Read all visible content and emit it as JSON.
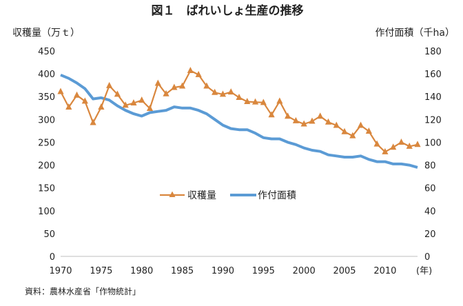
{
  "chart_data": {
    "type": "line",
    "title": "図１　ばれいしょ生産の推移",
    "y_left_label": "収穫量（万ｔ）",
    "y_right_label": "作付面積（千ha）",
    "x_unit_label": "(年)",
    "source_note": "資料：農林水産省「作物統計」",
    "grid": false,
    "legend_position": "center",
    "x_range": [
      1970,
      2014
    ],
    "x_ticks": [
      "1970",
      "1975",
      "1980",
      "1985",
      "1990",
      "1995",
      "2000",
      "2005",
      "2010"
    ],
    "y_left": {
      "min": 0,
      "max": 450,
      "ticks": [
        "0",
        "50",
        "100",
        "150",
        "200",
        "250",
        "300",
        "350",
        "400",
        "450"
      ]
    },
    "y_right": {
      "min": 0,
      "max": 180,
      "ticks": [
        "0",
        "20",
        "40",
        "60",
        "80",
        "100",
        "120",
        "140",
        "160",
        "180"
      ]
    },
    "series": [
      {
        "name": "収穫量",
        "axis": "left",
        "marker": "triangle",
        "color": "#d9873e",
        "x": [
          1970,
          1971,
          1972,
          1973,
          1974,
          1975,
          1976,
          1977,
          1978,
          1979,
          1980,
          1981,
          1982,
          1983,
          1984,
          1985,
          1986,
          1987,
          1988,
          1989,
          1990,
          1991,
          1992,
          1993,
          1994,
          1995,
          1996,
          1997,
          1998,
          1999,
          2000,
          2001,
          2002,
          2003,
          2004,
          2005,
          2006,
          2007,
          2008,
          2009,
          2010,
          2011,
          2012,
          2013,
          2014
        ],
        "values": [
          361,
          327,
          353,
          340,
          293,
          327,
          374,
          355,
          331,
          336,
          342,
          324,
          379,
          356,
          370,
          373,
          407,
          398,
          373,
          359,
          355,
          360,
          348,
          339,
          338,
          337,
          310,
          340,
          307,
          297,
          290,
          296,
          307,
          294,
          287,
          273,
          264,
          287,
          274,
          246,
          229,
          239,
          250,
          241,
          245
        ]
      },
      {
        "name": "作付面積",
        "axis": "right",
        "marker": "none",
        "color": "#5b9bd5",
        "x": [
          1970,
          1971,
          1972,
          1973,
          1974,
          1975,
          1976,
          1977,
          1978,
          1979,
          1980,
          1981,
          1982,
          1983,
          1984,
          1985,
          1986,
          1987,
          1988,
          1989,
          1990,
          1991,
          1992,
          1993,
          1994,
          1995,
          1996,
          1997,
          1998,
          1999,
          2000,
          2001,
          2002,
          2003,
          2004,
          2005,
          2006,
          2007,
          2008,
          2009,
          2010,
          2011,
          2012,
          2013,
          2014
        ],
        "values": [
          159,
          156,
          152,
          147,
          138,
          139,
          137,
          132,
          128,
          125,
          123,
          126,
          127,
          128,
          131,
          130,
          130,
          128,
          125,
          120,
          115,
          112,
          111,
          111,
          108,
          104,
          103,
          103,
          100,
          98,
          95,
          93,
          92,
          89,
          88,
          87,
          87,
          88,
          85,
          83,
          83,
          81,
          81,
          80,
          78
        ]
      }
    ]
  }
}
